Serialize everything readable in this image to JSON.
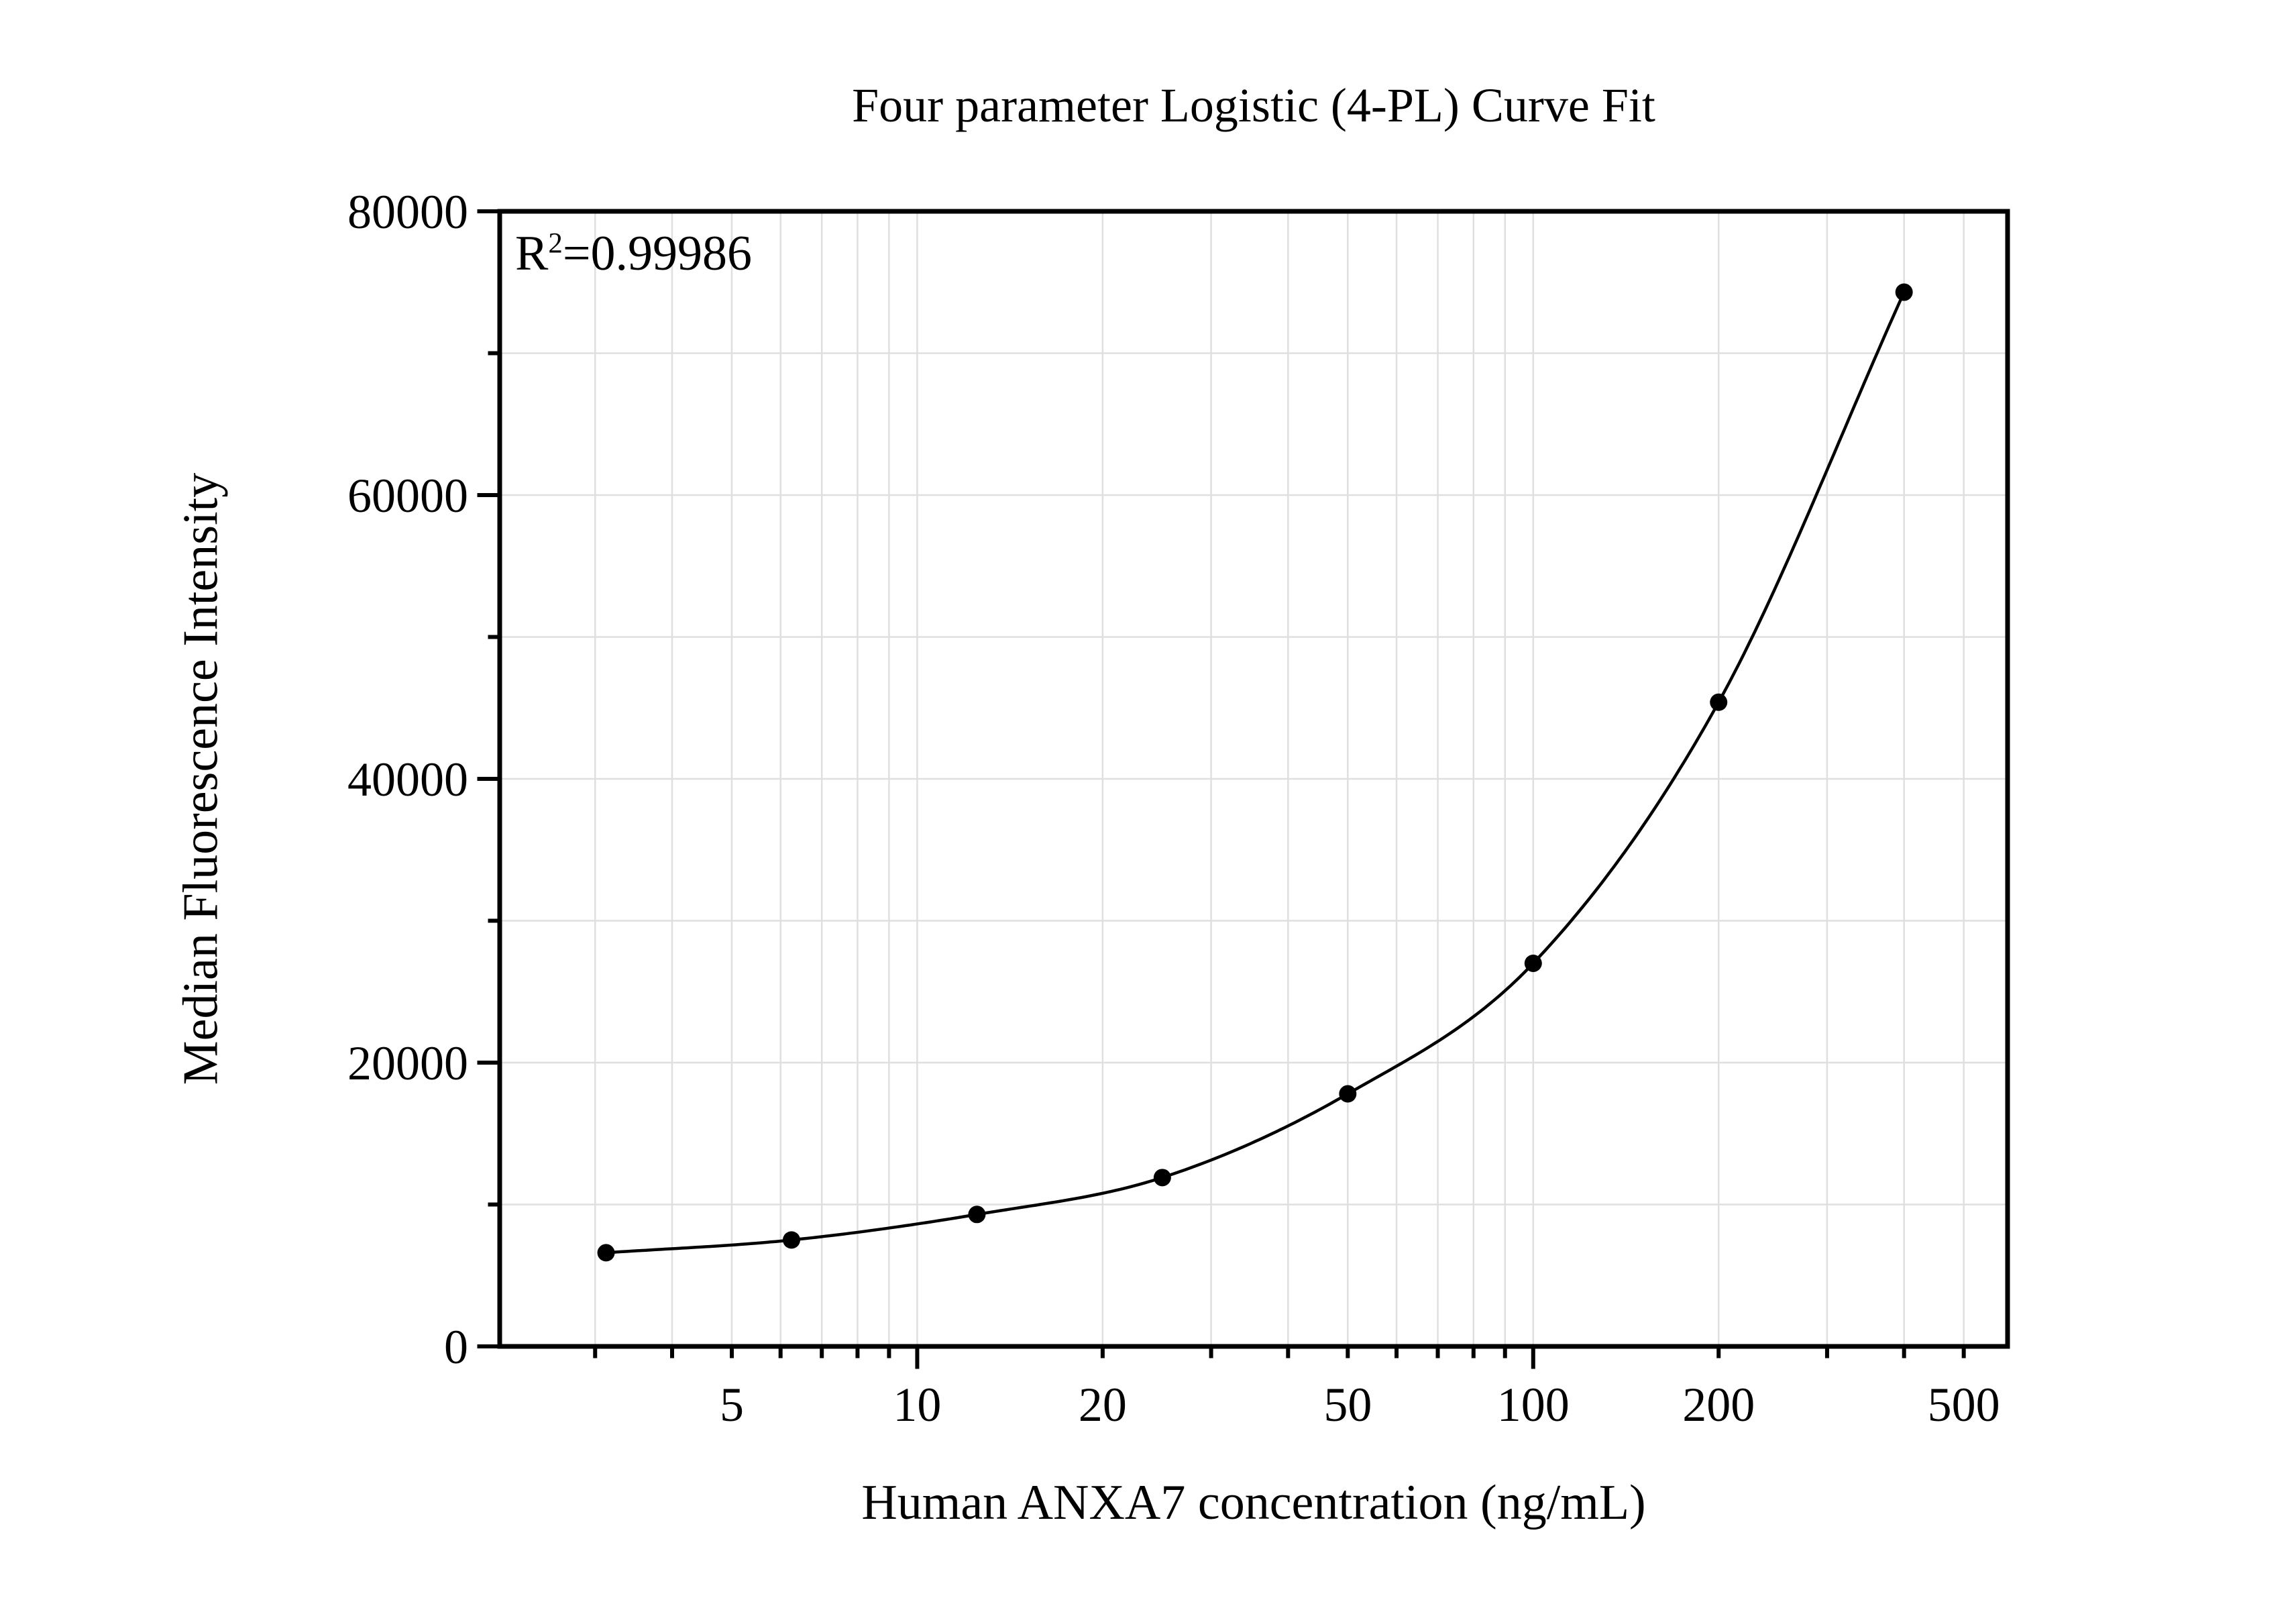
{
  "figure": {
    "title": "Four parameter Logistic (4-PL) Curve Fit",
    "x_axis_label": "Human ANXA7 concentration (ng/mL)",
    "y_axis_label": "Median Fluorescence Intensity",
    "annotation": {
      "base": "R",
      "superscript": "2",
      "rest": "=0.99986"
    }
  },
  "chart_data": {
    "type": "scatter",
    "title": "Four parameter Logistic (4-PL) Curve Fit",
    "xlabel": "Human ANXA7 concentration (ng/mL)",
    "ylabel": "Median Fluorescence Intensity",
    "annotation_text": "R2=0.99986",
    "r_squared": 0.99986,
    "x_scale": "log10",
    "x_range": [
      2.1,
      589
    ],
    "y_range": [
      0,
      80000
    ],
    "x_ticks_all": [
      3,
      4,
      5,
      6,
      7,
      8,
      9,
      10,
      20,
      30,
      40,
      50,
      60,
      70,
      80,
      90,
      100,
      200,
      300,
      400,
      500
    ],
    "x_ticks_major": [
      10,
      100
    ],
    "x_ticks_labeled": [
      5,
      10,
      20,
      50,
      100,
      200,
      500
    ],
    "y_ticks_major": [
      0,
      20000,
      40000,
      60000,
      80000
    ],
    "y_ticks_minor": [
      10000,
      30000,
      50000,
      70000
    ],
    "y_tick_labels": [
      "0",
      "20000",
      "40000",
      "60000",
      "80000"
    ],
    "grid": true,
    "x_gridlines": [
      3,
      4,
      5,
      6,
      7,
      8,
      9,
      10,
      20,
      30,
      40,
      50,
      60,
      70,
      80,
      90,
      100,
      200,
      300,
      400,
      500
    ],
    "y_gridlines": [
      10000,
      20000,
      30000,
      40000,
      50000,
      60000,
      70000
    ],
    "legend": "none",
    "series": [
      {
        "name": "standard-curve-points",
        "marker": "filled-circle",
        "points": [
          {
            "x": 3.125,
            "y": 6600
          },
          {
            "x": 6.25,
            "y": 7500
          },
          {
            "x": 12.5,
            "y": 9300
          },
          {
            "x": 25,
            "y": 11900
          },
          {
            "x": 50,
            "y": 17800
          },
          {
            "x": 100,
            "y": 27000
          },
          {
            "x": 200,
            "y": 45400
          },
          {
            "x": 400,
            "y": 74300
          }
        ]
      }
    ],
    "fit_curve": {
      "name": "4-PL fit",
      "style": "smooth curve through all points, drawn from first to last point"
    },
    "colors": {
      "background": "#ffffff",
      "axis": "#000000",
      "text": "#000000",
      "gridline": "#dfdfdf",
      "curve": "#000000",
      "points": "#000000"
    }
  }
}
